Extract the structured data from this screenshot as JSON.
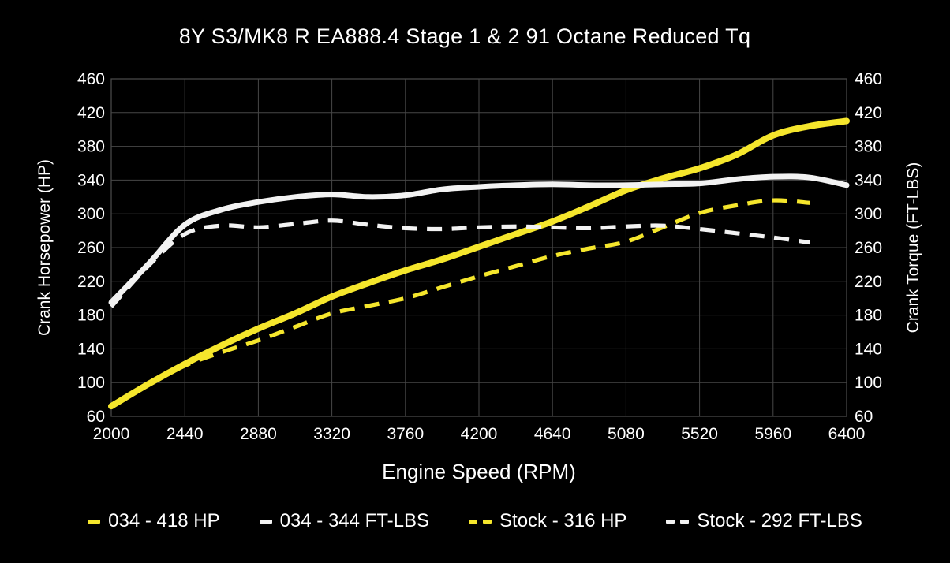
{
  "title": "8Y S3/MK8 R EA888.4 Stage 1 & 2 91 Octane Reduced Tq",
  "colors": {
    "background": "#000000",
    "grid": "#474747",
    "text": "#ffffff",
    "yellow_curve": "#f5e62c",
    "white_curve": "#f2f2f2"
  },
  "chart_data": {
    "type": "line",
    "title": "8Y S3/MK8 R EA888.4 Stage 1 & 2 91 Octane Reduced Tq",
    "xlabel": "Engine Speed (RPM)",
    "ylabel_left": "Crank Horsepower (HP)",
    "ylabel_right": "Crank Torque (FT-LBS)",
    "xlim": [
      2000,
      6400
    ],
    "ylim": [
      60,
      460
    ],
    "x_ticks": [
      2000,
      2440,
      2880,
      3320,
      3760,
      4200,
      4640,
      5080,
      5520,
      5960,
      6400
    ],
    "y_ticks": [
      60,
      100,
      140,
      180,
      220,
      260,
      300,
      340,
      380,
      420,
      460
    ],
    "grid": true,
    "legend_position": "bottom",
    "x": [
      2000,
      2220,
      2440,
      2660,
      2880,
      3100,
      3320,
      3540,
      3760,
      3980,
      4200,
      4420,
      4640,
      4860,
      5080,
      5300,
      5520,
      5740,
      5960,
      6180,
      6400
    ],
    "series": [
      {
        "key": "034-hp",
        "name": "034 - 418 HP",
        "color": "yellow",
        "style": "solid",
        "axis": "HP",
        "values": [
          72,
          98,
          122,
          144,
          164,
          182,
          202,
          218,
          233,
          246,
          261,
          276,
          291,
          309,
          328,
          342,
          354,
          370,
          393,
          404,
          410
        ]
      },
      {
        "key": "034-tq",
        "name": "034 - 344 FT-LBS",
        "color": "white",
        "style": "solid",
        "axis": "FT-LBS",
        "values": [
          195,
          240,
          287,
          305,
          314,
          320,
          323,
          320,
          322,
          329,
          332,
          334,
          335,
          334,
          334,
          335,
          336,
          341,
          344,
          343,
          334
        ]
      },
      {
        "key": "stock-hp",
        "name": "Stock - 316 HP",
        "color": "yellow",
        "style": "dashed",
        "axis": "HP",
        "values": [
          72,
          97,
          120,
          136,
          150,
          166,
          182,
          191,
          200,
          213,
          226,
          238,
          250,
          259,
          267,
          284,
          301,
          310,
          316,
          313,
          null
        ]
      },
      {
        "key": "stock-tq",
        "name": "Stock - 292 FT-LBS",
        "color": "white",
        "style": "dashed",
        "axis": "FT-LBS",
        "values": [
          190,
          238,
          276,
          286,
          284,
          288,
          292,
          287,
          283,
          282,
          284,
          285,
          284,
          283,
          285,
          286,
          282,
          277,
          272,
          266,
          null
        ]
      }
    ]
  }
}
